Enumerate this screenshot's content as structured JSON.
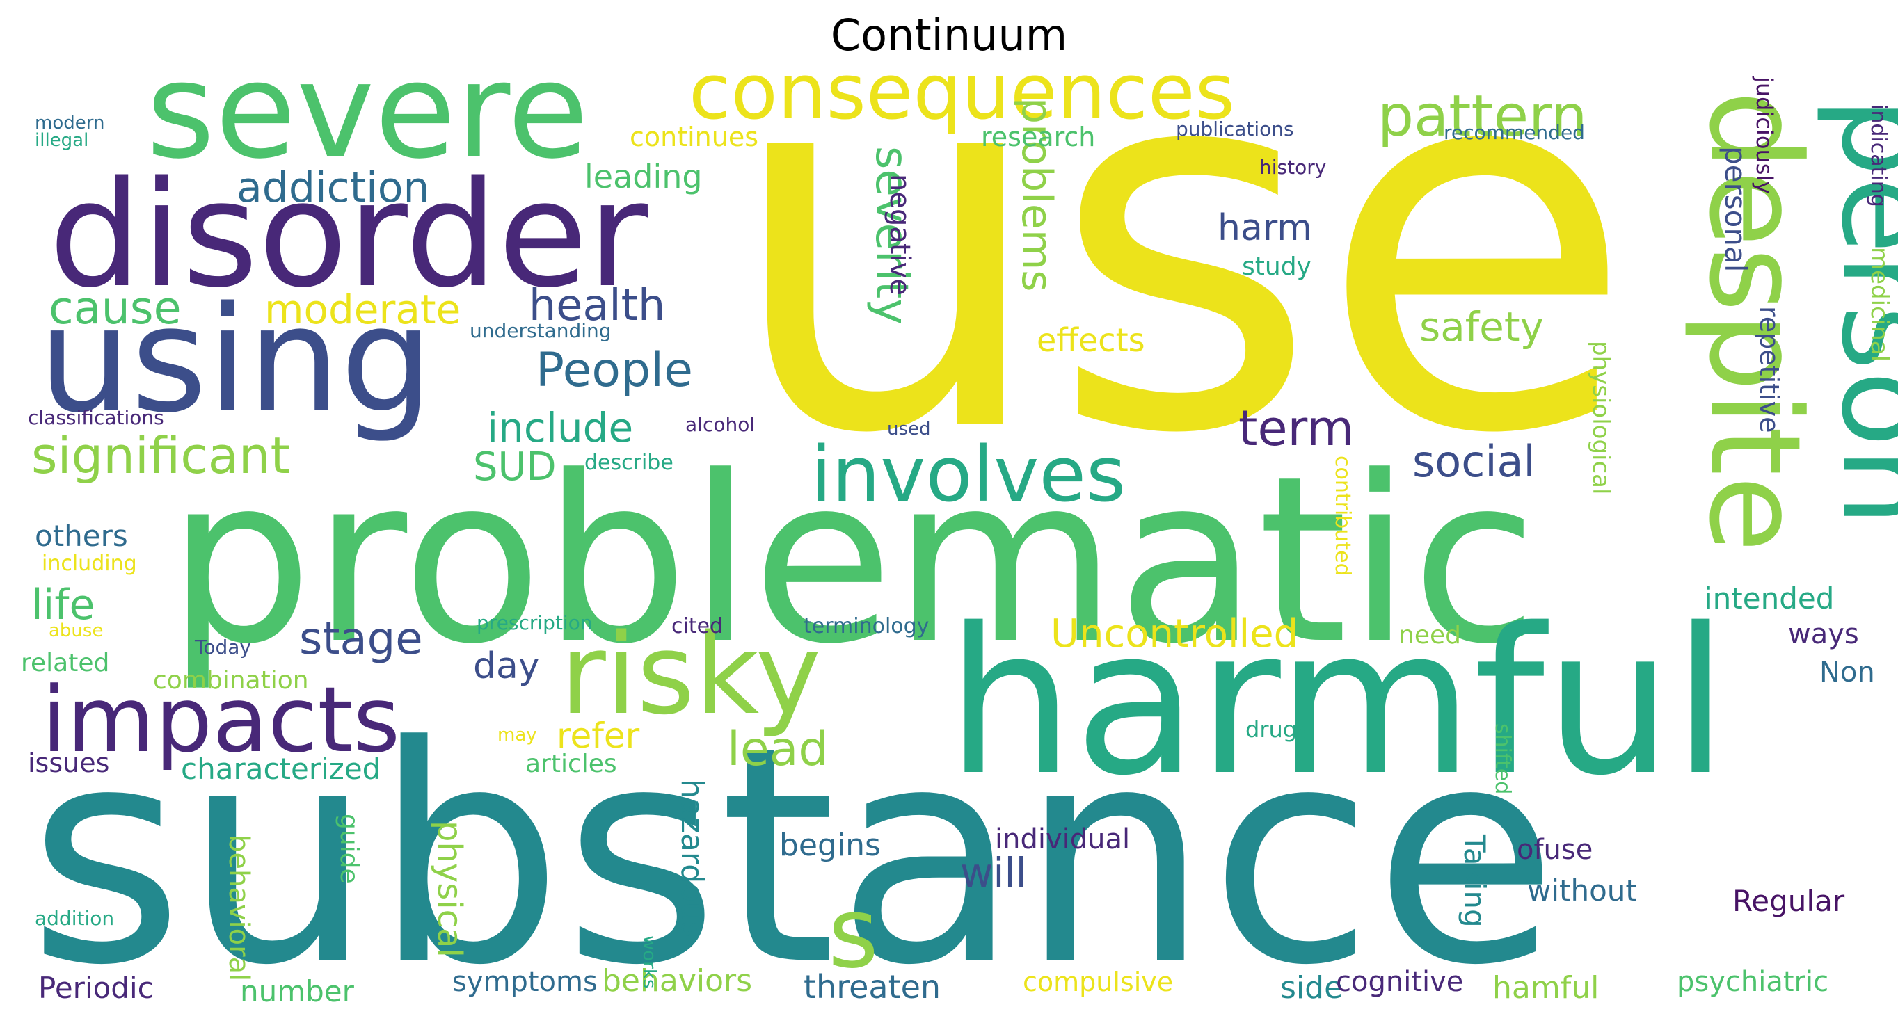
{
  "title": "Continuum",
  "colors": {
    "yellow": "#ece31b",
    "lightgreen": "#8fd149",
    "green": "#4cc26c",
    "teal": "#26a985",
    "cyan": "#23898e",
    "blue": "#2f6b8e",
    "indigo": "#3c4e8a",
    "purple": "#482878",
    "dark": "#471365"
  },
  "words": [
    "use",
    "substance",
    "problematic",
    "harmful",
    "person",
    "despite",
    "disorder",
    "using",
    "severe",
    "consequences",
    "risky",
    "impacts",
    "involves",
    "s",
    "pattern",
    "addiction",
    "cause",
    "moderate",
    "health",
    "People",
    "significant",
    "include",
    "SUD",
    "term",
    "social",
    "harm",
    "safety",
    "severity",
    "problems",
    "effects",
    "leading",
    "continues",
    "research",
    "negative",
    "others",
    "life",
    "stage",
    "day",
    "Uncontrolled",
    "refer",
    "lead",
    "will",
    "begins",
    "individual",
    "intended",
    "ways",
    "Non",
    "related",
    "combination",
    "characterized",
    "issues",
    "articles",
    "hazardous",
    "physical",
    "behavioral",
    "guide",
    "Periodic",
    "number",
    "symptoms",
    "behaviors",
    "threaten",
    "compulsive",
    "side",
    "cognitive",
    "hamful",
    "psychiatric",
    "Regular",
    "without",
    "ofuse",
    "Taking",
    "personal",
    "judiciously",
    "indicating",
    "medicinal",
    "repetitive",
    "physiological",
    "contributed",
    "shifted",
    "drugs",
    "need",
    "modern",
    "illegal",
    "publications",
    "recommended",
    "history",
    "study",
    "understanding",
    "classifications",
    "alcohol",
    "used",
    "describe",
    "including",
    "abuse",
    "Today",
    "prescription",
    "cited",
    "terminology",
    "may",
    "works",
    "addition"
  ]
}
